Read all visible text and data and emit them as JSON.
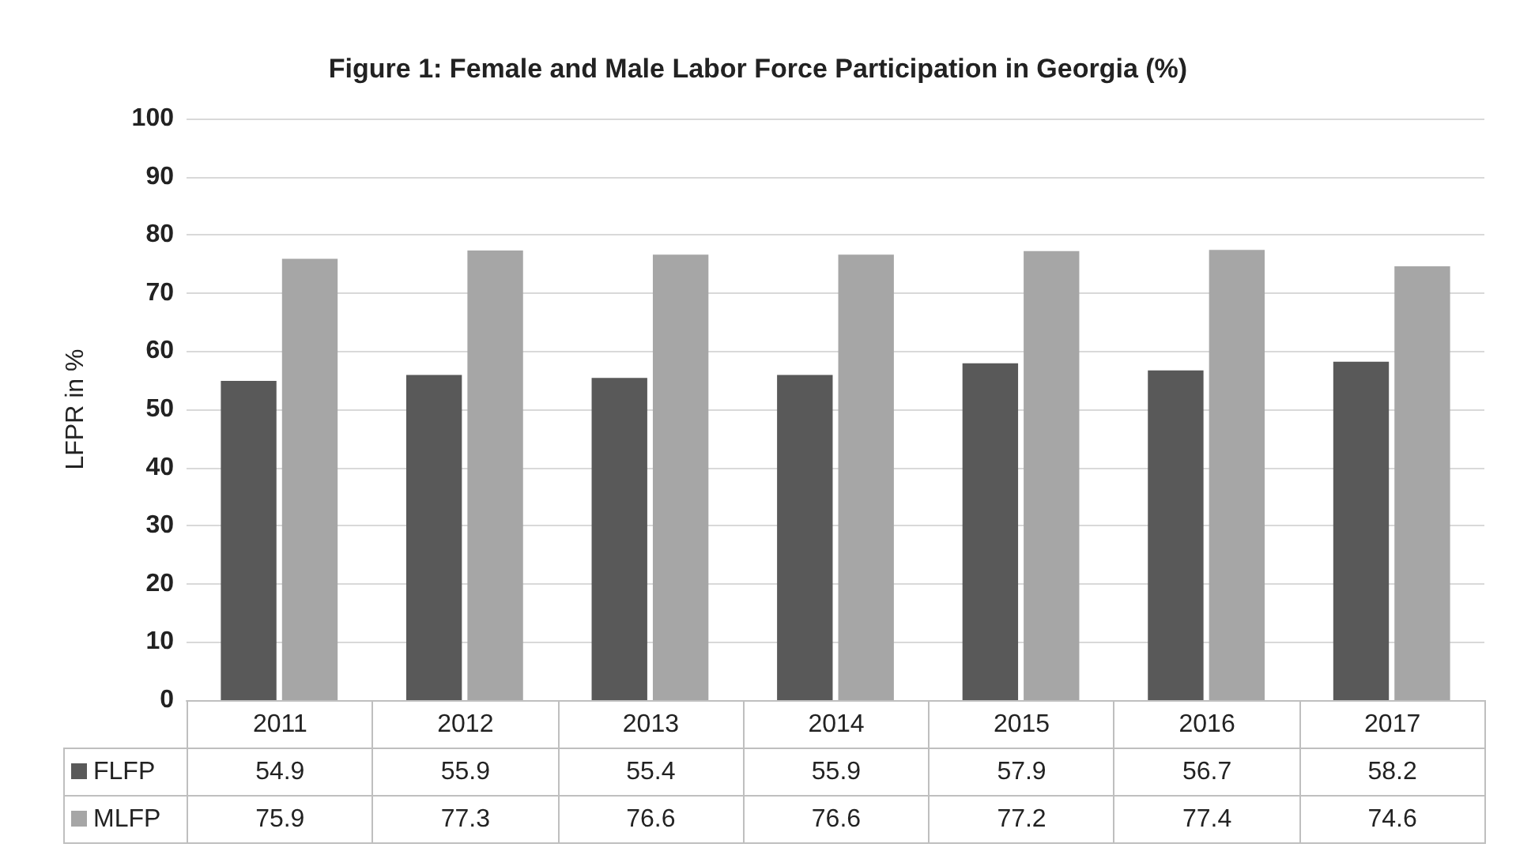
{
  "chart_data": {
    "type": "bar",
    "title": "Figure 1: Female and Male Labor Force Participation in Georgia (%)",
    "ylabel": "LFPR in %",
    "categories": [
      "2011",
      "2012",
      "2013",
      "2014",
      "2015",
      "2016",
      "2017"
    ],
    "series": [
      {
        "name": "FLFP",
        "color": "#595959",
        "values": [
          54.9,
          55.9,
          55.4,
          55.9,
          57.9,
          56.7,
          58.2
        ]
      },
      {
        "name": "MLFP",
        "color": "#a6a6a6",
        "values": [
          75.9,
          77.3,
          76.6,
          76.6,
          77.2,
          77.4,
          74.6
        ]
      }
    ],
    "ylim": [
      0,
      100
    ],
    "yticks": [
      0,
      10,
      20,
      30,
      40,
      50,
      60,
      70,
      80,
      90,
      100
    ],
    "grid": "y",
    "legend": "bottom",
    "data_labels": true
  }
}
